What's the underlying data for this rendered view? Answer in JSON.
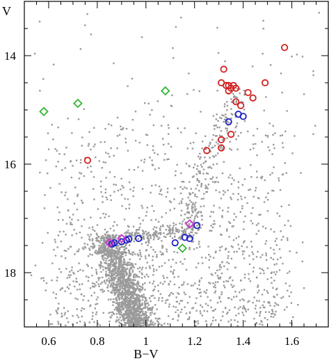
{
  "chart_data": {
    "type": "scatter",
    "title": "",
    "xlabel": "B−V",
    "ylabel": "V",
    "xlim": [
      0.5,
      1.75
    ],
    "ylim": [
      19.0,
      13.0
    ],
    "y_inverted": true,
    "grid": false,
    "x_ticks": [
      0.6,
      0.8,
      1.0,
      1.2,
      1.4,
      1.6
    ],
    "x_tick_labels": [
      "0.6",
      "0.8",
      "1",
      "1.2",
      "1.4",
      "1.6"
    ],
    "y_ticks": [
      14,
      16,
      18
    ],
    "y_tick_labels": [
      "14",
      "16",
      "18"
    ],
    "colors": {
      "field": "#9a9a9a",
      "red": "#d21f1f",
      "blue": "#1f1fc8",
      "green": "#32b432",
      "magenta": "#d030d0"
    },
    "series": [
      {
        "marker": "circle",
        "color_key": "red",
        "points": [
          [
            1.57,
            13.85
          ],
          [
            1.32,
            14.25
          ],
          [
            1.31,
            14.5
          ],
          [
            1.33,
            14.55
          ],
          [
            1.34,
            14.55
          ],
          [
            1.35,
            14.6
          ],
          [
            1.37,
            14.6
          ],
          [
            1.36,
            14.55
          ],
          [
            1.34,
            14.65
          ],
          [
            1.42,
            14.68
          ],
          [
            1.49,
            14.5
          ],
          [
            1.44,
            14.78
          ],
          [
            1.37,
            14.85
          ],
          [
            1.39,
            14.92
          ],
          [
            1.35,
            15.45
          ],
          [
            1.31,
            15.55
          ],
          [
            1.31,
            15.7
          ],
          [
            1.25,
            15.75
          ],
          [
            0.76,
            15.93
          ]
        ]
      },
      {
        "marker": "circle",
        "color_key": "blue",
        "points": [
          [
            1.38,
            15.08
          ],
          [
            1.4,
            15.12
          ],
          [
            1.34,
            15.22
          ],
          [
            1.21,
            17.13
          ],
          [
            1.16,
            17.35
          ],
          [
            1.18,
            17.37
          ],
          [
            1.12,
            17.45
          ],
          [
            0.97,
            17.37
          ],
          [
            0.93,
            17.38
          ],
          [
            0.92,
            17.4
          ],
          [
            0.9,
            17.43
          ],
          [
            0.87,
            17.45
          ],
          [
            0.86,
            17.47
          ]
        ]
      },
      {
        "marker": "diamond",
        "color_key": "green",
        "points": [
          [
            1.08,
            14.65
          ],
          [
            0.72,
            14.88
          ],
          [
            0.58,
            15.03
          ],
          [
            1.15,
            17.55
          ]
        ]
      },
      {
        "marker": "diamond",
        "color_key": "magenta",
        "points": [
          [
            1.18,
            17.1
          ],
          [
            0.9,
            17.37
          ],
          [
            0.85,
            17.45
          ]
        ]
      }
    ],
    "field_stars": {
      "description": "dense grey background population (cluster main sequence, subgiant branch, red giant branch, field stars)",
      "seed": 7,
      "count": 3200
    }
  }
}
